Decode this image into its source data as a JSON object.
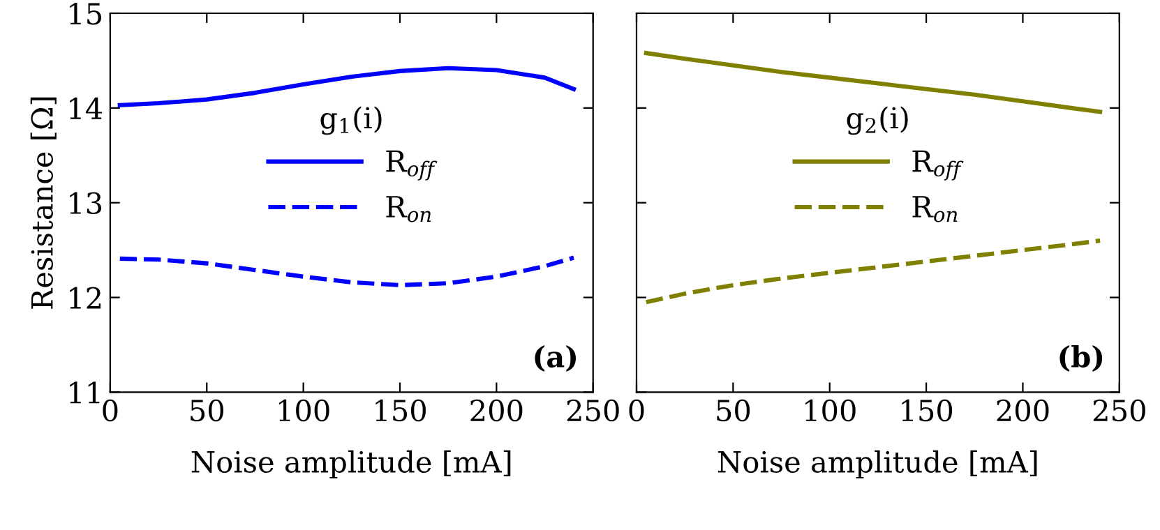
{
  "chart_data": [
    {
      "type": "line",
      "x": [
        5,
        25,
        50,
        75,
        100,
        125,
        150,
        175,
        200,
        225,
        240
      ],
      "xlim": [
        0,
        250
      ],
      "xticks": [
        0,
        50,
        100,
        150,
        200,
        250
      ],
      "ylim": [
        11,
        15
      ],
      "yticks": [
        11,
        12,
        13,
        14,
        15
      ],
      "xlabel": "Noise amplitude [mA]",
      "ylabel": "Resistance [Ω]",
      "legend_title": "g$_{1}$(i)",
      "legend": "center",
      "annotations": [
        "(a)"
      ],
      "series": [
        {
          "name": "R$_{off}$",
          "color": "#0000ff",
          "line_style": "solid",
          "values": [
            14.03,
            14.05,
            14.09,
            14.16,
            14.25,
            14.33,
            14.39,
            14.42,
            14.4,
            14.32,
            14.2
          ]
        },
        {
          "name": "R$_{on}$",
          "color": "#0000ff",
          "line_style": "dashed",
          "values": [
            12.41,
            12.4,
            12.36,
            12.29,
            12.22,
            12.16,
            12.13,
            12.15,
            12.22,
            12.33,
            12.42
          ]
        }
      ]
    },
    {
      "type": "line",
      "x": [
        5,
        25,
        50,
        75,
        100,
        125,
        150,
        175,
        200,
        225,
        240
      ],
      "xlim": [
        0,
        250
      ],
      "xticks": [
        0,
        50,
        100,
        150,
        200,
        250
      ],
      "ylim": [
        11,
        15
      ],
      "yticks": [
        11,
        12,
        13,
        14,
        15
      ],
      "tick_labels": "x",
      "xlabel": "Noise amplitude [mA]",
      "legend_title": "g$_{2}$(i)",
      "legend": "center",
      "annotations": [
        "(b)"
      ],
      "series": [
        {
          "name": "R$_{off}$",
          "color": "#808000",
          "line_style": "solid",
          "values": [
            14.58,
            14.52,
            14.45,
            14.38,
            14.32,
            14.26,
            14.2,
            14.14,
            14.07,
            14.0,
            13.96
          ]
        },
        {
          "name": "R$_{on}$",
          "color": "#808000",
          "line_style": "dashed",
          "values": [
            11.95,
            12.04,
            12.13,
            12.2,
            12.26,
            12.32,
            12.38,
            12.44,
            12.5,
            12.56,
            12.6
          ]
        }
      ]
    }
  ]
}
